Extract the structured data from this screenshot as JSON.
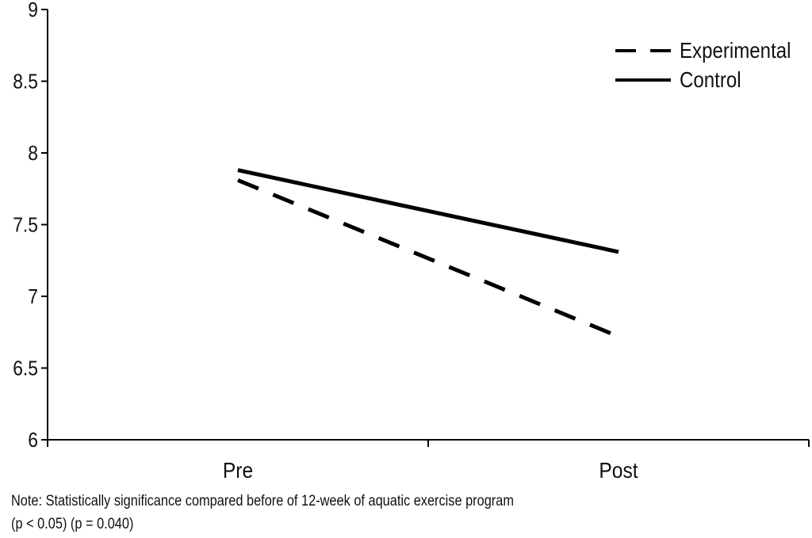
{
  "chart_data": {
    "type": "line",
    "title": "",
    "xlabel": "",
    "ylabel": "",
    "categories": [
      "Pre",
      "Post"
    ],
    "ylim": [
      6,
      9
    ],
    "yticks": [
      "6",
      "6.5",
      "7",
      "7.5",
      "8",
      "8.5",
      "9"
    ],
    "grid": false,
    "legend_position": "top-right",
    "series": [
      {
        "name": "Experimental",
        "style": "dashed",
        "color": "#000000",
        "values": [
          7.81,
          6.72
        ]
      },
      {
        "name": "Control",
        "style": "solid",
        "color": "#000000",
        "values": [
          7.88,
          7.31
        ]
      }
    ]
  },
  "note": {
    "line1": "Note: Statistically significance compared before of 12-week of aquatic exercise program",
    "line2": "(p < 0.05) (p = 0.040)"
  }
}
